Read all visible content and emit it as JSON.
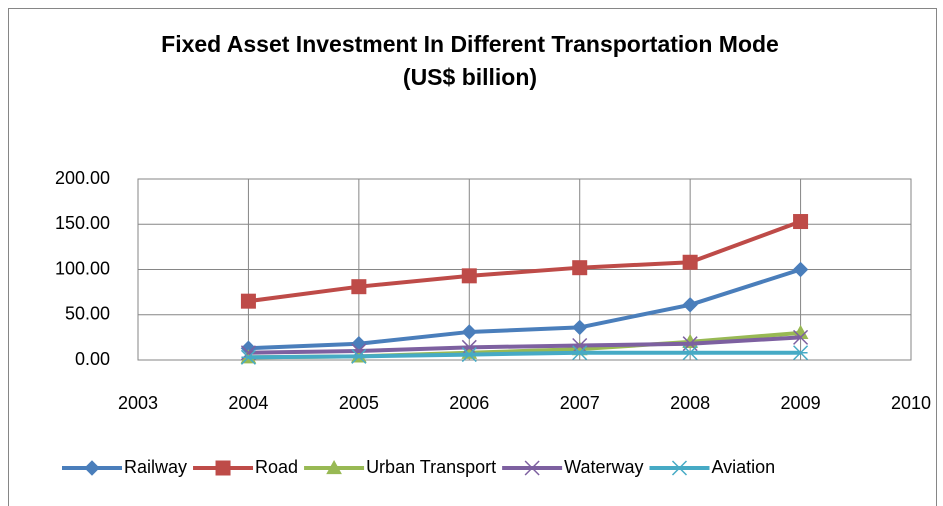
{
  "chart_data": {
    "type": "line",
    "title": "Fixed Asset Investment In Different Transportation Mode",
    "subtitle": "(US$ billion)",
    "x": [
      2004,
      2005,
      2006,
      2007,
      2008,
      2009
    ],
    "xlim": [
      2003,
      2010
    ],
    "xticks": [
      2003,
      2004,
      2005,
      2006,
      2007,
      2008,
      2009,
      2010
    ],
    "ylim": [
      0,
      200
    ],
    "yticks": [
      {
        "value": 0,
        "label": "0.00"
      },
      {
        "value": 50,
        "label": "50.00"
      },
      {
        "value": 100,
        "label": "100.00"
      },
      {
        "value": 150,
        "label": "150.00"
      },
      {
        "value": 200,
        "label": "200.00"
      }
    ],
    "grid": true,
    "legend": "bottom",
    "series": [
      {
        "name": "Railway",
        "color": "#4a7ebb",
        "marker": "diamond",
        "values": [
          13,
          18,
          31,
          36,
          61,
          100
        ]
      },
      {
        "name": "Road",
        "color": "#be4b48",
        "marker": "square",
        "values": [
          65,
          81,
          93,
          102,
          108,
          153
        ]
      },
      {
        "name": "Urban Transport",
        "color": "#98b954",
        "marker": "triangle",
        "values": [
          3,
          4,
          8,
          12,
          20,
          30
        ]
      },
      {
        "name": "Waterway",
        "color": "#7d60a0",
        "marker": "x",
        "values": [
          8,
          10,
          14,
          16,
          18,
          25
        ]
      },
      {
        "name": "Aviation",
        "color": "#46aac5",
        "marker": "asterisk",
        "values": [
          3,
          4,
          6,
          8,
          8,
          8
        ]
      }
    ]
  }
}
